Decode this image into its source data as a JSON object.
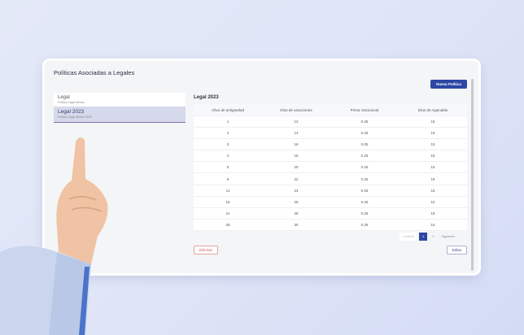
{
  "page": {
    "title": "Políticas Asociadas a Legales",
    "new_button": "Nueva Política"
  },
  "sidebar": {
    "items": [
      {
        "name": "Legal",
        "subtitle": "Política Legal México",
        "selected": false
      },
      {
        "name": "Legal 2023",
        "subtitle": "Política Legal México 2023",
        "selected": true
      }
    ]
  },
  "detail": {
    "title": "Legal 2023",
    "columns": [
      "Años de antigüedad",
      "Días de vacaciones",
      "Prima Vacacional",
      "Días de Aguinaldo"
    ],
    "rows": [
      [
        "1",
        "12",
        "0.25",
        "15"
      ],
      [
        "2",
        "14",
        "0.25",
        "15"
      ],
      [
        "3",
        "16",
        "0.25",
        "15"
      ],
      [
        "4",
        "18",
        "0.25",
        "15"
      ],
      [
        "5",
        "20",
        "0.25",
        "15"
      ],
      [
        "6",
        "22",
        "0.25",
        "15"
      ],
      [
        "11",
        "24",
        "0.25",
        "15"
      ],
      [
        "16",
        "26",
        "0.25",
        "15"
      ],
      [
        "21",
        "28",
        "0.25",
        "15"
      ],
      [
        "26",
        "30",
        "0.25",
        "15"
      ]
    ]
  },
  "pagination": {
    "prev": "‹ Anterior",
    "pages": [
      "1",
      "2"
    ],
    "current": "1",
    "next": "Siguiente ›"
  },
  "actions": {
    "delete": "Eliminar",
    "edit": "Editar"
  },
  "colors": {
    "primary": "#2d47a5",
    "danger": "#cc5555"
  }
}
